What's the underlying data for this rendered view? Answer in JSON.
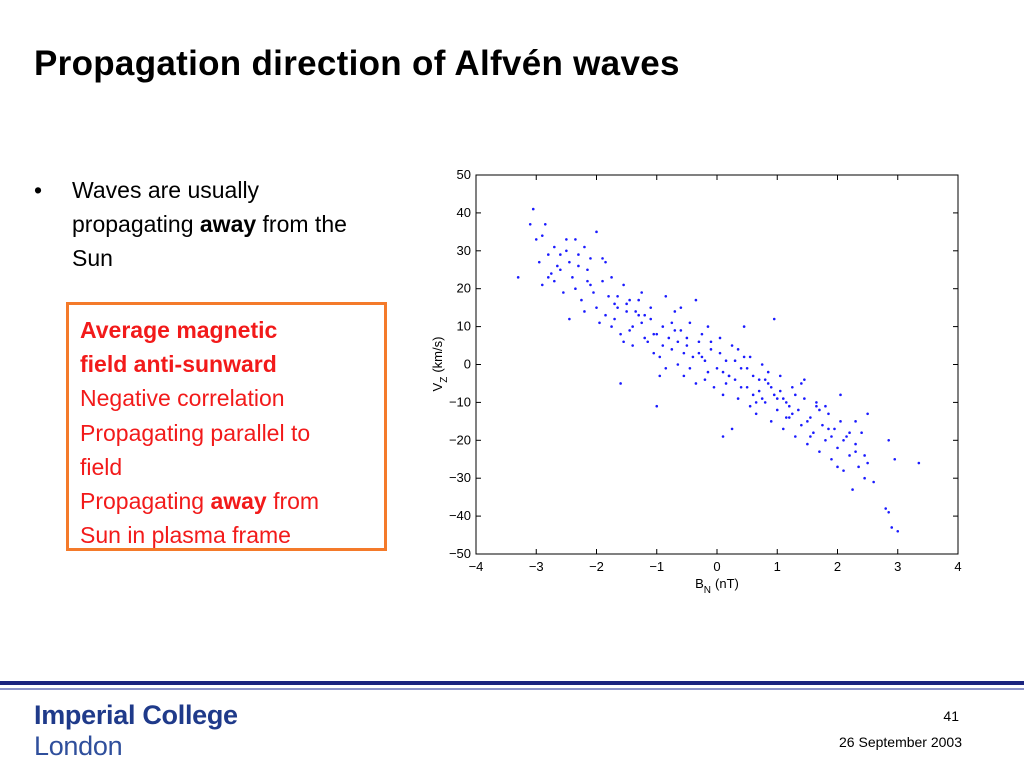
{
  "slide": {
    "title": "Propagation direction of Alfvén waves",
    "bullet": {
      "marker": "•",
      "text_before": "Waves are usually propagating ",
      "emphasis": "away",
      "text_after": " from the Sun"
    },
    "callout": {
      "line1": "Average magnetic",
      "line2": "field anti-sunward",
      "line3": "Negative correlation",
      "line4": "Propagating parallel to",
      "line5": "field",
      "line6_before": "Propagating ",
      "line6_emphasis": "away",
      "line6_after": " from",
      "line7": "Sun in plasma frame",
      "border_color": "#f47a2a",
      "text_color": "#f21a1a"
    },
    "footer": {
      "logo_line1": "Imperial College",
      "logo_line2": "London",
      "page_number": "41",
      "date": "26 September 2003"
    }
  },
  "chart_data": {
    "type": "scatter",
    "xlabel": {
      "main": "B",
      "sub": "N",
      "unit": "(nT)"
    },
    "ylabel": {
      "main": "V",
      "sub": "Z",
      "unit": "(km/s)"
    },
    "xlim": [
      -4,
      4
    ],
    "ylim": [
      -50,
      50
    ],
    "xticks": [
      -4,
      -3,
      -2,
      -1,
      0,
      1,
      2,
      3,
      4
    ],
    "yticks": [
      -50,
      -40,
      -30,
      -20,
      -10,
      0,
      10,
      20,
      30,
      40,
      50
    ],
    "xtick_labels": [
      "−4",
      "−3",
      "−2",
      "−1",
      "0",
      "1",
      "2",
      "3",
      "4"
    ],
    "ytick_labels": [
      "−50",
      "−40",
      "−30",
      "−20",
      "−10",
      "0",
      "10",
      "20",
      "30",
      "40",
      "50"
    ],
    "marker_color": "#1a1aff",
    "grid": false,
    "points": [
      [
        -3.3,
        23
      ],
      [
        -3.1,
        37
      ],
      [
        -3.05,
        41
      ],
      [
        -3.0,
        33
      ],
      [
        -2.95,
        27
      ],
      [
        -2.9,
        21
      ],
      [
        -2.85,
        37
      ],
      [
        -2.8,
        29
      ],
      [
        -2.75,
        24
      ],
      [
        -2.7,
        31
      ],
      [
        -2.65,
        26
      ],
      [
        -2.6,
        25
      ],
      [
        -2.55,
        19
      ],
      [
        -2.5,
        30
      ],
      [
        -2.45,
        27
      ],
      [
        -2.4,
        23
      ],
      [
        -2.35,
        33
      ],
      [
        -2.3,
        29
      ],
      [
        -2.25,
        17
      ],
      [
        -2.2,
        31
      ],
      [
        -2.15,
        25
      ],
      [
        -2.1,
        21
      ],
      [
        -2.05,
        19
      ],
      [
        -2.0,
        35
      ],
      [
        -1.95,
        11
      ],
      [
        -1.9,
        28
      ],
      [
        -1.85,
        13
      ],
      [
        -1.8,
        18
      ],
      [
        -1.75,
        23
      ],
      [
        -1.7,
        12
      ],
      [
        -1.65,
        15
      ],
      [
        -1.6,
        8
      ],
      [
        -1.55,
        21
      ],
      [
        -1.5,
        16
      ],
      [
        -1.45,
        9
      ],
      [
        -1.4,
        5
      ],
      [
        -1.35,
        14
      ],
      [
        -1.3,
        17
      ],
      [
        -1.25,
        11
      ],
      [
        -1.2,
        13
      ],
      [
        -1.15,
        6
      ],
      [
        -1.1,
        12
      ],
      [
        -1.05,
        3
      ],
      [
        -1.0,
        8
      ],
      [
        -0.95,
        2
      ],
      [
        -0.9,
        10
      ],
      [
        -0.85,
        -1
      ],
      [
        -0.8,
        7
      ],
      [
        -0.75,
        4
      ],
      [
        -0.7,
        14
      ],
      [
        -0.65,
        0
      ],
      [
        -0.6,
        9
      ],
      [
        -0.55,
        -3
      ],
      [
        -0.5,
        5
      ],
      [
        -0.45,
        11
      ],
      [
        -0.4,
        2
      ],
      [
        -0.35,
        -5
      ],
      [
        -0.3,
        6
      ],
      [
        -0.25,
        8
      ],
      [
        -0.2,
        1
      ],
      [
        -0.15,
        -2
      ],
      [
        -0.1,
        4
      ],
      [
        -0.05,
        -6
      ],
      [
        0.0,
        -1
      ],
      [
        0.05,
        3
      ],
      [
        0.1,
        -8
      ],
      [
        0.15,
        1
      ],
      [
        0.2,
        -3
      ],
      [
        0.25,
        5
      ],
      [
        0.3,
        -4
      ],
      [
        0.35,
        -9
      ],
      [
        0.4,
        -1
      ],
      [
        0.45,
        2
      ],
      [
        0.5,
        -6
      ],
      [
        0.55,
        -11
      ],
      [
        0.6,
        -3
      ],
      [
        0.65,
        -13
      ],
      [
        0.7,
        -7
      ],
      [
        0.75,
        0
      ],
      [
        0.8,
        -10
      ],
      [
        0.85,
        -5
      ],
      [
        0.9,
        -15
      ],
      [
        0.95,
        -8
      ],
      [
        1.0,
        -12
      ],
      [
        1.05,
        -3
      ],
      [
        1.1,
        -17
      ],
      [
        1.15,
        -10
      ],
      [
        1.2,
        -14
      ],
      [
        1.25,
        -6
      ],
      [
        1.3,
        -19
      ],
      [
        1.35,
        -12
      ],
      [
        1.4,
        -16
      ],
      [
        1.45,
        -9
      ],
      [
        1.5,
        -21
      ],
      [
        1.55,
        -14
      ],
      [
        1.6,
        -18
      ],
      [
        1.65,
        -11
      ],
      [
        1.7,
        -23
      ],
      [
        1.75,
        -16
      ],
      [
        1.8,
        -20
      ],
      [
        1.85,
        -13
      ],
      [
        1.9,
        -25
      ],
      [
        1.95,
        -17
      ],
      [
        2.0,
        -22
      ],
      [
        2.05,
        -15
      ],
      [
        2.1,
        -28
      ],
      [
        2.15,
        -19
      ],
      [
        2.2,
        -24
      ],
      [
        2.25,
        -33
      ],
      [
        2.3,
        -21
      ],
      [
        2.35,
        -27
      ],
      [
        2.4,
        -18
      ],
      [
        2.45,
        -30
      ],
      [
        2.5,
        -26
      ],
      [
        2.8,
        -38
      ],
      [
        2.85,
        -20
      ],
      [
        2.9,
        -43
      ],
      [
        2.95,
        -25
      ],
      [
        3.0,
        -44
      ],
      [
        3.35,
        -26
      ],
      [
        -2.9,
        34
      ],
      [
        -2.7,
        22
      ],
      [
        -2.5,
        33
      ],
      [
        -2.3,
        26
      ],
      [
        -2.1,
        28
      ],
      [
        -1.9,
        22
      ],
      [
        -1.7,
        16
      ],
      [
        -1.5,
        14
      ],
      [
        -1.3,
        13
      ],
      [
        -1.1,
        15
      ],
      [
        -0.9,
        5
      ],
      [
        -0.7,
        9
      ],
      [
        -0.5,
        7
      ],
      [
        -0.3,
        3
      ],
      [
        -0.1,
        6
      ],
      [
        0.1,
        -2
      ],
      [
        0.3,
        1
      ],
      [
        0.5,
        -1
      ],
      [
        0.7,
        -4
      ],
      [
        0.9,
        -6
      ],
      [
        1.1,
        -9
      ],
      [
        1.3,
        -8
      ],
      [
        1.5,
        -15
      ],
      [
        1.7,
        -12
      ],
      [
        1.9,
        -19
      ],
      [
        2.1,
        -20
      ],
      [
        2.3,
        -23
      ],
      [
        -1.6,
        -5
      ],
      [
        -1.0,
        -11
      ],
      [
        0.1,
        -19
      ],
      [
        0.25,
        -17
      ],
      [
        0.45,
        10
      ],
      [
        0.95,
        12
      ],
      [
        1.8,
        -11
      ],
      [
        2.5,
        -13
      ],
      [
        -2.45,
        12
      ],
      [
        -2.2,
        14
      ],
      [
        -1.75,
        10
      ],
      [
        -0.85,
        18
      ],
      [
        -0.6,
        15
      ],
      [
        -0.35,
        17
      ],
      [
        -2.0,
        15
      ],
      [
        -1.85,
        27
      ],
      [
        -1.55,
        6
      ],
      [
        -1.25,
        19
      ],
      [
        -0.95,
        -3
      ],
      [
        -0.75,
        11
      ],
      [
        -0.45,
        -1
      ],
      [
        -0.15,
        10
      ],
      [
        0.05,
        7
      ],
      [
        0.35,
        4
      ],
      [
        0.55,
        2
      ],
      [
        0.75,
        -9
      ],
      [
        0.85,
        -2
      ],
      [
        1.05,
        -7
      ],
      [
        1.25,
        -13
      ],
      [
        1.45,
        -4
      ],
      [
        1.65,
        -10
      ],
      [
        1.85,
        -17
      ],
      [
        2.05,
        -8
      ],
      [
        2.3,
        -15
      ],
      [
        2.45,
        -24
      ],
      [
        1.4,
        -5
      ],
      [
        0.6,
        -8
      ],
      [
        -0.2,
        -4
      ],
      [
        -1.4,
        10
      ],
      [
        -2.6,
        29
      ],
      [
        -2.8,
        23
      ],
      [
        -2.35,
        20
      ],
      [
        -1.45,
        17
      ],
      [
        -1.05,
        8
      ],
      [
        -0.55,
        3
      ],
      [
        0.15,
        -5
      ],
      [
        0.65,
        -10
      ],
      [
        1.15,
        -14
      ],
      [
        1.55,
        -19
      ],
      [
        2.0,
        -27
      ],
      [
        2.2,
        -18
      ],
      [
        2.6,
        -31
      ],
      [
        2.85,
        -39
      ],
      [
        0.2,
        -3
      ],
      [
        0.4,
        -6
      ],
      [
        0.8,
        -4
      ],
      [
        1.0,
        -9
      ],
      [
        1.2,
        -11
      ],
      [
        -0.25,
        2
      ],
      [
        -0.65,
        6
      ],
      [
        -1.2,
        7
      ],
      [
        -1.65,
        18
      ],
      [
        -2.15,
        22
      ]
    ]
  }
}
